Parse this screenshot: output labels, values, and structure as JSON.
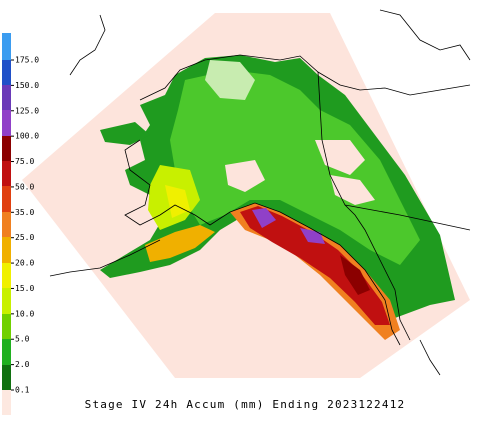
{
  "legend": {
    "labels": [
      "175.0",
      "150.0",
      "125.0",
      "100.0",
      "75.0",
      "50.0",
      "35.0",
      "25.0",
      "20.0",
      "15.0",
      "10.0",
      "5.0",
      "2.0",
      "0.1"
    ]
  },
  "caption": "Stage IV 24h Accum (mm) Ending 2023122412"
}
